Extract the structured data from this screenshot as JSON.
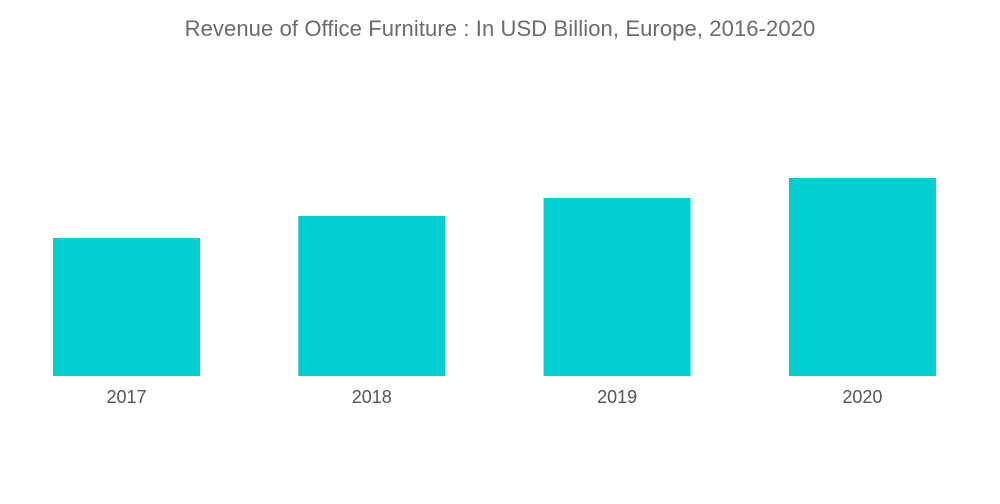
{
  "title": "Revenue of Office Furniture : In USD Billion, Europe, 2016-2020",
  "colors": {
    "bar": "#00CED1",
    "background": "#ffffff",
    "title": "#6b6b6b",
    "tick": "#555555"
  },
  "chart_data": {
    "type": "bar",
    "title": "Revenue of Office Furniture : In USD Billion, Europe, 2016-2020",
    "categories": [
      "2017",
      "2018",
      "2019",
      "2020"
    ],
    "values": [
      6.9,
      8.0,
      8.9,
      9.9
    ],
    "xlabel": "",
    "ylabel": "",
    "ylim": [
      0,
      12.5
    ],
    "grid": false,
    "legend": "none"
  }
}
